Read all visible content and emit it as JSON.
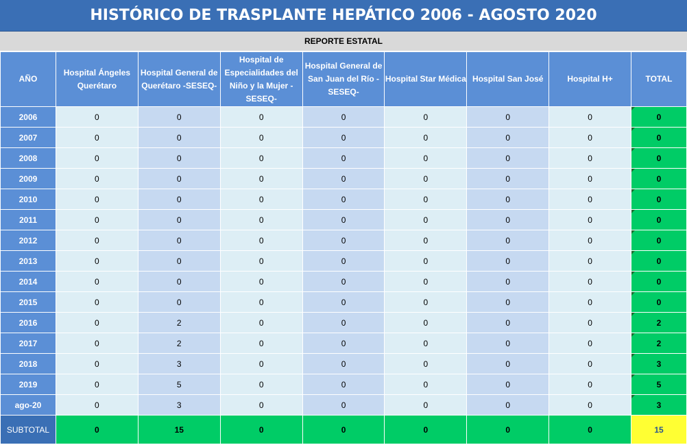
{
  "title": "HISTÓRICO DE TRASPLANTE HEPÁTICO 2006 - AGOSTO 2020",
  "subtitle": "REPORTE ESTATAL",
  "columns": [
    "AÑO",
    "Hospital Ángeles Querétaro",
    "Hospital General de Querétaro -SESEQ-",
    "Hospital de Especialidades del Niño y la Mujer -SESEQ-",
    "Hospital General de San Juan del Río -SESEQ-",
    "Hospital Star Médica",
    "Hospital San José",
    "Hospital H+",
    "TOTAL"
  ],
  "rows": [
    {
      "year": "2006",
      "values": [
        "0",
        "0",
        "0",
        "0",
        "0",
        "0",
        "0"
      ],
      "total": "0"
    },
    {
      "year": "2007",
      "values": [
        "0",
        "0",
        "0",
        "0",
        "0",
        "0",
        "0"
      ],
      "total": "0"
    },
    {
      "year": "2008",
      "values": [
        "0",
        "0",
        "0",
        "0",
        "0",
        "0",
        "0"
      ],
      "total": "0"
    },
    {
      "year": "2009",
      "values": [
        "0",
        "0",
        "0",
        "0",
        "0",
        "0",
        "0"
      ],
      "total": "0"
    },
    {
      "year": "2010",
      "values": [
        "0",
        "0",
        "0",
        "0",
        "0",
        "0",
        "0"
      ],
      "total": "0"
    },
    {
      "year": "2011",
      "values": [
        "0",
        "0",
        "0",
        "0",
        "0",
        "0",
        "0"
      ],
      "total": "0"
    },
    {
      "year": "2012",
      "values": [
        "0",
        "0",
        "0",
        "0",
        "0",
        "0",
        "0"
      ],
      "total": "0"
    },
    {
      "year": "2013",
      "values": [
        "0",
        "0",
        "0",
        "0",
        "0",
        "0",
        "0"
      ],
      "total": "0"
    },
    {
      "year": "2014",
      "values": [
        "0",
        "0",
        "0",
        "0",
        "0",
        "0",
        "0"
      ],
      "total": "0"
    },
    {
      "year": "2015",
      "values": [
        "0",
        "0",
        "0",
        "0",
        "0",
        "0",
        "0"
      ],
      "total": "0"
    },
    {
      "year": "2016",
      "values": [
        "0",
        "2",
        "0",
        "0",
        "0",
        "0",
        "0"
      ],
      "total": "2"
    },
    {
      "year": "2017",
      "values": [
        "0",
        "2",
        "0",
        "0",
        "0",
        "0",
        "0"
      ],
      "total": "2"
    },
    {
      "year": "2018",
      "values": [
        "0",
        "3",
        "0",
        "0",
        "0",
        "0",
        "0"
      ],
      "total": "3"
    },
    {
      "year": "2019",
      "values": [
        "0",
        "5",
        "0",
        "0",
        "0",
        "0",
        "0"
      ],
      "total": "5"
    },
    {
      "year": "ago-20",
      "values": [
        "0",
        "3",
        "0",
        "0",
        "0",
        "0",
        "0"
      ],
      "total": "3"
    }
  ],
  "subtotal": {
    "label": "SUBTOTAL",
    "values": [
      "0",
      "15",
      "0",
      "0",
      "0",
      "0",
      "0"
    ],
    "total": "15"
  },
  "colors": {
    "title_bg": "#3a6fb5",
    "header_bg": "#5b8fd6",
    "cell_light": "#ddeef5",
    "cell_mid": "#c6d9f1",
    "total_green": "#00cc66",
    "grand_total_yellow": "#ffff33"
  }
}
